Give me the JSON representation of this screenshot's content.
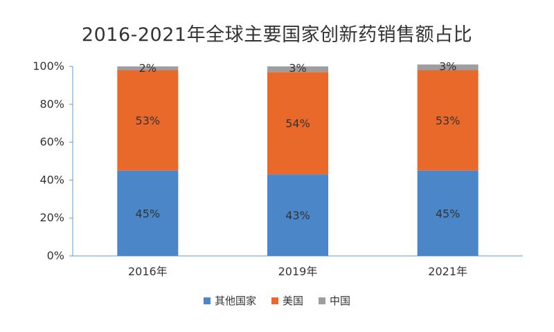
{
  "chart_data": {
    "type": "bar",
    "stacked": true,
    "title": "2016-2021年全球主要国家创新药销售额占比",
    "categories": [
      "2016年",
      "2019年",
      "2021年"
    ],
    "series": [
      {
        "name": "其他国家",
        "values": [
          45,
          43,
          45
        ],
        "labels": [
          "45%",
          "43%",
          "45%"
        ],
        "color": "#4a86c8"
      },
      {
        "name": "美国",
        "values": [
          53,
          54,
          53
        ],
        "labels": [
          "53%",
          "54%",
          "53%"
        ],
        "color": "#e8692a"
      },
      {
        "name": "中国",
        "values": [
          2,
          3,
          3
        ],
        "labels": [
          "2%",
          "3%",
          "3%"
        ],
        "color": "#9e9e9e"
      }
    ],
    "ylim": [
      0,
      100
    ],
    "yticks": [
      "0%",
      "20%",
      "40%",
      "60%",
      "80%",
      "100%"
    ],
    "ytick_values": [
      0,
      20,
      40,
      60,
      80,
      100
    ],
    "grid": false,
    "legend_position": "bottom"
  }
}
